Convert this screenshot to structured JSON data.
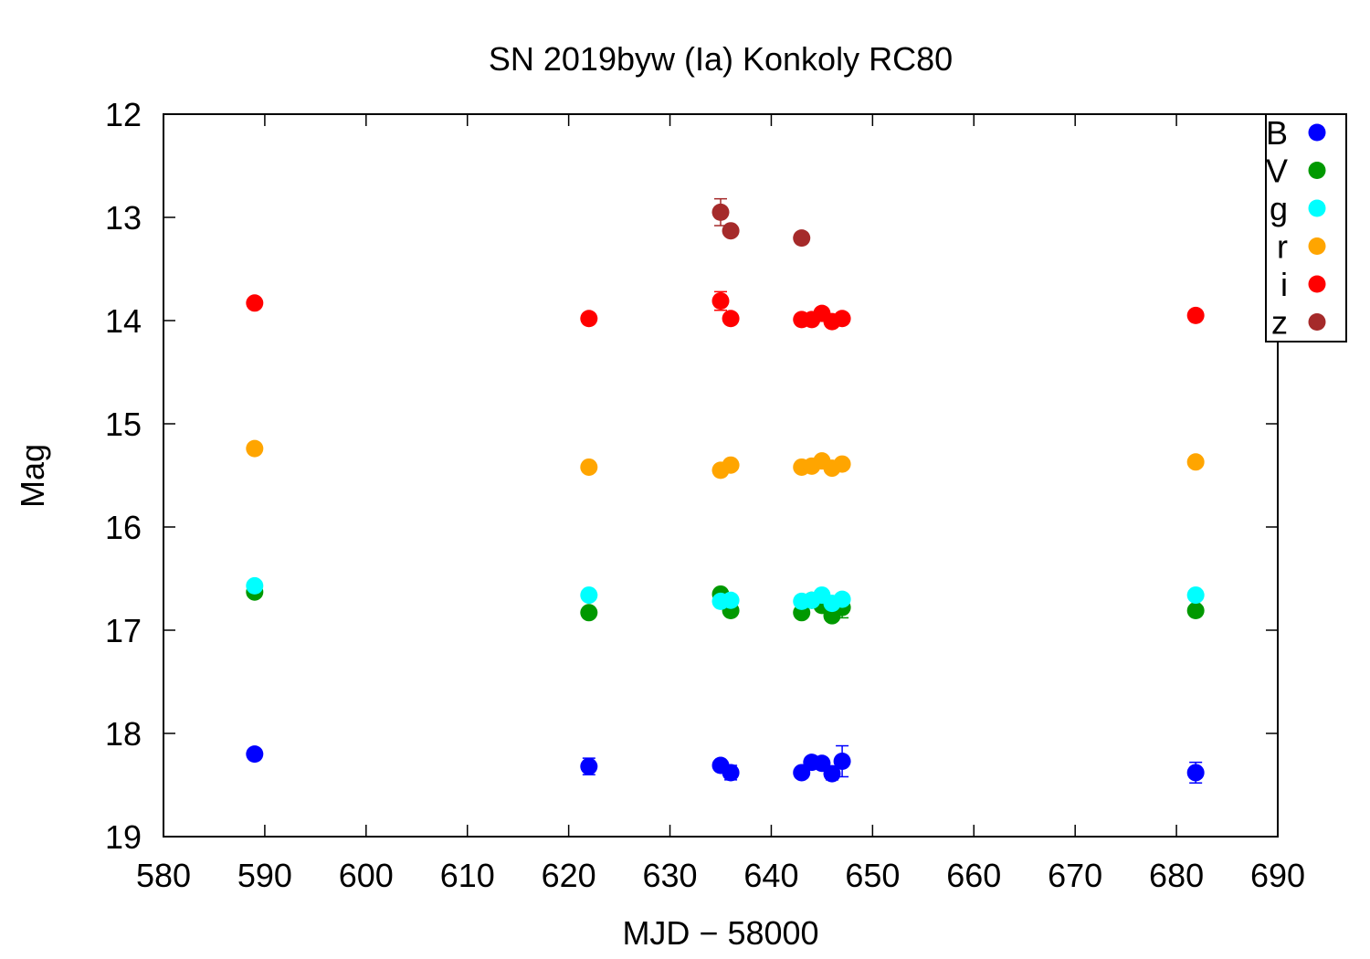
{
  "chart_data": {
    "type": "scatter",
    "title": "SN 2019byw (Ia) Konkoly RC80",
    "xlabel": "MJD − 58000",
    "ylabel": "Mag",
    "xlim": [
      580,
      690
    ],
    "ylim": [
      12,
      19
    ],
    "y_inverted": true,
    "x_ticks": [
      580,
      590,
      600,
      610,
      620,
      630,
      640,
      650,
      660,
      670,
      680,
      690
    ],
    "y_ticks": [
      12,
      13,
      14,
      15,
      16,
      17,
      18,
      19
    ],
    "grid": false,
    "legend_position": "top-right",
    "series": [
      {
        "name": "B",
        "color": "#0000ff",
        "points": [
          {
            "x": 589.0,
            "y": 18.2,
            "err": 0.04
          },
          {
            "x": 622.0,
            "y": 18.32,
            "err": 0.08
          },
          {
            "x": 635.0,
            "y": 18.31,
            "err": 0.05
          },
          {
            "x": 636.0,
            "y": 18.38,
            "err": 0.07
          },
          {
            "x": 643.0,
            "y": 18.38,
            "err": 0.05
          },
          {
            "x": 644.0,
            "y": 18.28,
            "err": 0.05
          },
          {
            "x": 645.0,
            "y": 18.29,
            "err": 0.05
          },
          {
            "x": 646.0,
            "y": 18.39,
            "err": 0.06
          },
          {
            "x": 647.0,
            "y": 18.27,
            "err": 0.15
          },
          {
            "x": 681.9,
            "y": 18.38,
            "err": 0.1
          }
        ]
      },
      {
        "name": "V",
        "color": "#009900",
        "points": [
          {
            "x": 589.0,
            "y": 16.63,
            "err": 0.03
          },
          {
            "x": 622.0,
            "y": 16.83,
            "err": 0.03
          },
          {
            "x": 635.0,
            "y": 16.65,
            "err": 0.03
          },
          {
            "x": 636.0,
            "y": 16.81,
            "err": 0.03
          },
          {
            "x": 643.0,
            "y": 16.83,
            "err": 0.03
          },
          {
            "x": 644.0,
            "y": 16.71,
            "err": 0.03
          },
          {
            "x": 645.0,
            "y": 16.76,
            "err": 0.03
          },
          {
            "x": 646.0,
            "y": 16.86,
            "err": 0.03
          },
          {
            "x": 647.0,
            "y": 16.78,
            "err": 0.1
          },
          {
            "x": 681.9,
            "y": 16.81,
            "err": 0.03
          }
        ]
      },
      {
        "name": "g",
        "color": "#00ffff",
        "points": [
          {
            "x": 589.0,
            "y": 16.57,
            "err": 0.02
          },
          {
            "x": 622.0,
            "y": 16.66,
            "err": 0.02
          },
          {
            "x": 635.0,
            "y": 16.72,
            "err": 0.02
          },
          {
            "x": 636.0,
            "y": 16.71,
            "err": 0.02
          },
          {
            "x": 643.0,
            "y": 16.72,
            "err": 0.02
          },
          {
            "x": 644.0,
            "y": 16.71,
            "err": 0.02
          },
          {
            "x": 645.0,
            "y": 16.66,
            "err": 0.02
          },
          {
            "x": 646.0,
            "y": 16.74,
            "err": 0.02
          },
          {
            "x": 647.0,
            "y": 16.7,
            "err": 0.02
          },
          {
            "x": 681.9,
            "y": 16.66,
            "err": 0.02
          }
        ]
      },
      {
        "name": "r",
        "color": "#ffa500",
        "points": [
          {
            "x": 589.0,
            "y": 15.24,
            "err": 0.02
          },
          {
            "x": 622.0,
            "y": 15.42,
            "err": 0.02
          },
          {
            "x": 635.0,
            "y": 15.45,
            "err": 0.02
          },
          {
            "x": 636.0,
            "y": 15.4,
            "err": 0.02
          },
          {
            "x": 643.0,
            "y": 15.42,
            "err": 0.02
          },
          {
            "x": 644.0,
            "y": 15.41,
            "err": 0.02
          },
          {
            "x": 645.0,
            "y": 15.36,
            "err": 0.02
          },
          {
            "x": 646.0,
            "y": 15.43,
            "err": 0.02
          },
          {
            "x": 647.0,
            "y": 15.39,
            "err": 0.02
          },
          {
            "x": 681.9,
            "y": 15.37,
            "err": 0.02
          }
        ]
      },
      {
        "name": "i",
        "color": "#ff0000",
        "points": [
          {
            "x": 589.0,
            "y": 13.83,
            "err": 0.02
          },
          {
            "x": 622.0,
            "y": 13.98,
            "err": 0.02
          },
          {
            "x": 635.0,
            "y": 13.81,
            "err": 0.09
          },
          {
            "x": 636.0,
            "y": 13.98,
            "err": 0.02
          },
          {
            "x": 643.0,
            "y": 13.99,
            "err": 0.02
          },
          {
            "x": 644.0,
            "y": 13.99,
            "err": 0.02
          },
          {
            "x": 645.0,
            "y": 13.93,
            "err": 0.02
          },
          {
            "x": 646.0,
            "y": 14.01,
            "err": 0.02
          },
          {
            "x": 647.0,
            "y": 13.98,
            "err": 0.02
          },
          {
            "x": 681.9,
            "y": 13.95,
            "err": 0.02
          }
        ]
      },
      {
        "name": "z",
        "color": "#a52a2a",
        "points": [
          {
            "x": 635.0,
            "y": 12.95,
            "err": 0.13
          },
          {
            "x": 636.0,
            "y": 13.13,
            "err": 0.02
          },
          {
            "x": 643.0,
            "y": 13.2,
            "err": 0.02
          }
        ]
      }
    ]
  }
}
